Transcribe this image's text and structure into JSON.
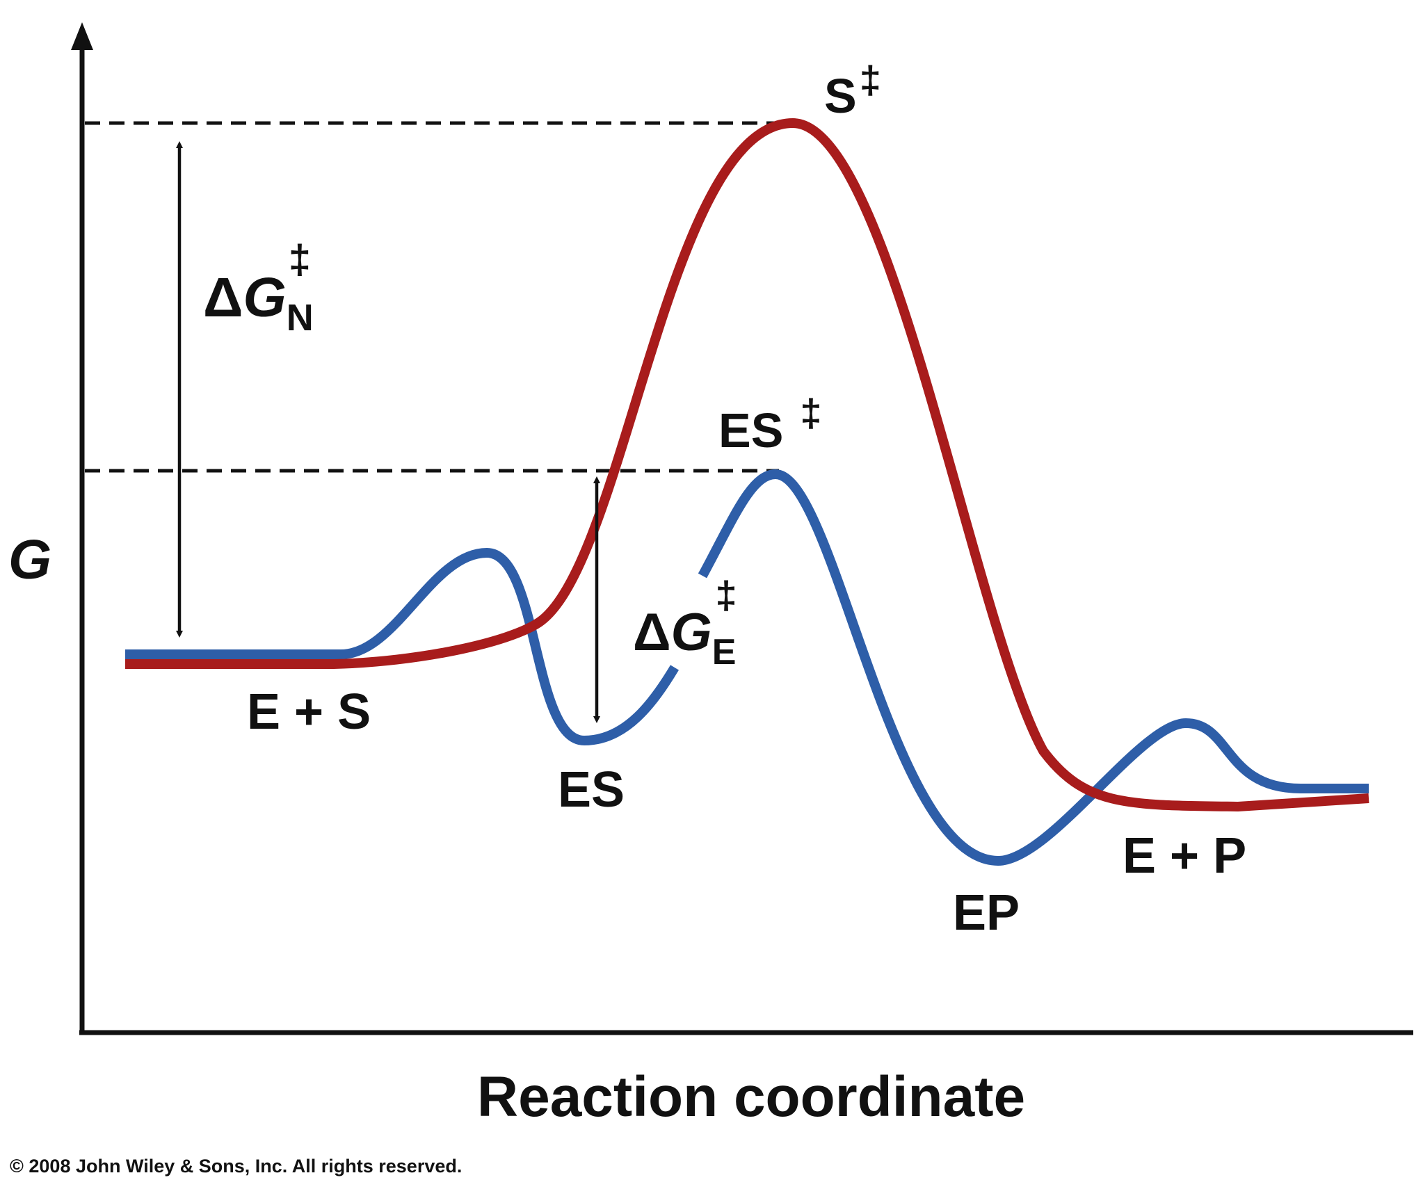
{
  "axes": {
    "y_label": "G",
    "x_label": "Reaction coordinate"
  },
  "curves": {
    "uncatalyzed_color": "#a81c1c",
    "catalyzed_color": "#2e5ea8"
  },
  "labels": {
    "s_ts_main": "S",
    "s_ts_sup": "‡",
    "es_ts_main": "ES",
    "es_ts_sup": "‡",
    "dgn_delta": "Δ",
    "dgn_g": "G",
    "dgn_sub": "N",
    "dgn_sup": "‡",
    "dge_delta": "Δ",
    "dge_g": "G",
    "dge_sub": "E",
    "dge_sup": "‡",
    "e_plus_s": "E + S",
    "es": "ES",
    "ep": "EP",
    "e_plus_p": "E + P"
  },
  "copyright": "© 2008 John Wiley & Sons, Inc. All rights reserved."
}
